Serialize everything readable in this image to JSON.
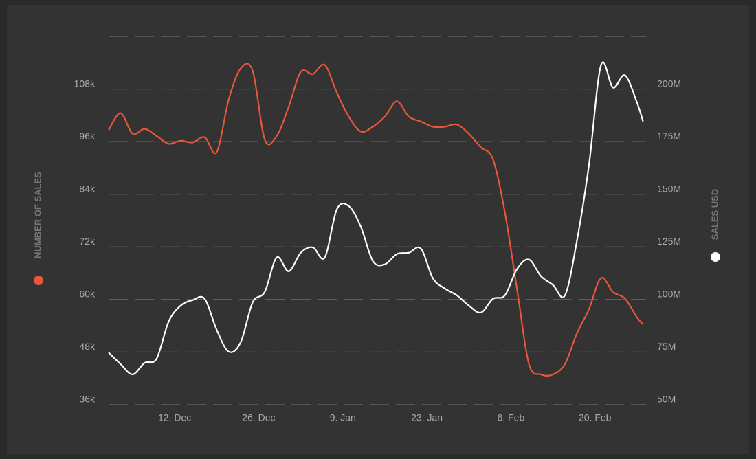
{
  "chart_data": {
    "type": "line",
    "x": [
      0,
      2,
      4,
      6,
      8,
      10,
      12,
      14,
      16,
      18,
      20,
      22,
      24,
      26,
      28,
      30,
      32,
      34,
      36,
      38,
      40,
      42,
      44,
      46,
      48,
      50,
      52,
      54,
      56,
      58,
      60,
      62,
      64,
      66,
      68,
      70,
      72,
      74,
      76,
      78,
      80,
      82,
      84,
      86,
      88,
      89
    ],
    "xlim": [
      0,
      89.5
    ],
    "xticks": [
      {
        "value": 11,
        "label": "12. Dec"
      },
      {
        "value": 25,
        "label": "26. Dec"
      },
      {
        "value": 39,
        "label": "9. Jan"
      },
      {
        "value": 53,
        "label": "23. Jan"
      },
      {
        "value": 67,
        "label": "6. Feb"
      },
      {
        "value": 81,
        "label": "20. Feb"
      }
    ],
    "ylim": [
      36,
      120
    ],
    "yticks": [
      {
        "value": 36,
        "label": "36k"
      },
      {
        "value": 48,
        "label": "48k"
      },
      {
        "value": 60,
        "label": "60k"
      },
      {
        "value": 72,
        "label": "72k"
      },
      {
        "value": 84,
        "label": "84k"
      },
      {
        "value": 96,
        "label": "96k"
      },
      {
        "value": 108,
        "label": "108k"
      }
    ],
    "y2lim": [
      50,
      225
    ],
    "y2ticks": [
      {
        "value": 50,
        "label": "50M"
      },
      {
        "value": 75,
        "label": "75M"
      },
      {
        "value": 100,
        "label": "100M"
      },
      {
        "value": 125,
        "label": "125M"
      },
      {
        "value": 150,
        "label": "150M"
      },
      {
        "value": 175,
        "label": "175M"
      },
      {
        "value": 200,
        "label": "200M"
      }
    ],
    "grid": true,
    "series": [
      {
        "name": "NUMBER OF SALES",
        "color": "#e8573a",
        "values": [
          98.6,
          102.5,
          97.8,
          98.9,
          97.3,
          95.5,
          96.2,
          95.8,
          97,
          93.6,
          105.6,
          112.7,
          112.1,
          96.5,
          97.3,
          104,
          111.9,
          111.4,
          113.5,
          107.2,
          101.7,
          98.3,
          99.4,
          101.7,
          105.2,
          101.7,
          100.6,
          99.4,
          99.4,
          99.9,
          97.8,
          94.7,
          92,
          79.8,
          62.5,
          45.3,
          42.9,
          42.9,
          45.3,
          52.3,
          57.8,
          64.9,
          61.7,
          60.2,
          55.9,
          54.4
        ]
      },
      {
        "name": "SALES USD",
        "color": "#ffffff",
        "axis": "y2",
        "values": [
          74.8,
          69.3,
          64.4,
          69.9,
          71.9,
          89.5,
          97.1,
          99.7,
          100.3,
          85.6,
          75.2,
          79.7,
          98.7,
          103.6,
          120,
          113.4,
          122.2,
          124.8,
          120,
          142.8,
          144.4,
          134.6,
          118.3,
          116.7,
          121.6,
          122.2,
          124.2,
          110.1,
          105.2,
          102,
          97.1,
          93.8,
          100.3,
          102,
          114.4,
          119,
          111.1,
          106.9,
          102,
          128.1,
          164,
          211.4,
          200.7,
          206.5,
          193.5,
          184.6
        ]
      }
    ]
  }
}
